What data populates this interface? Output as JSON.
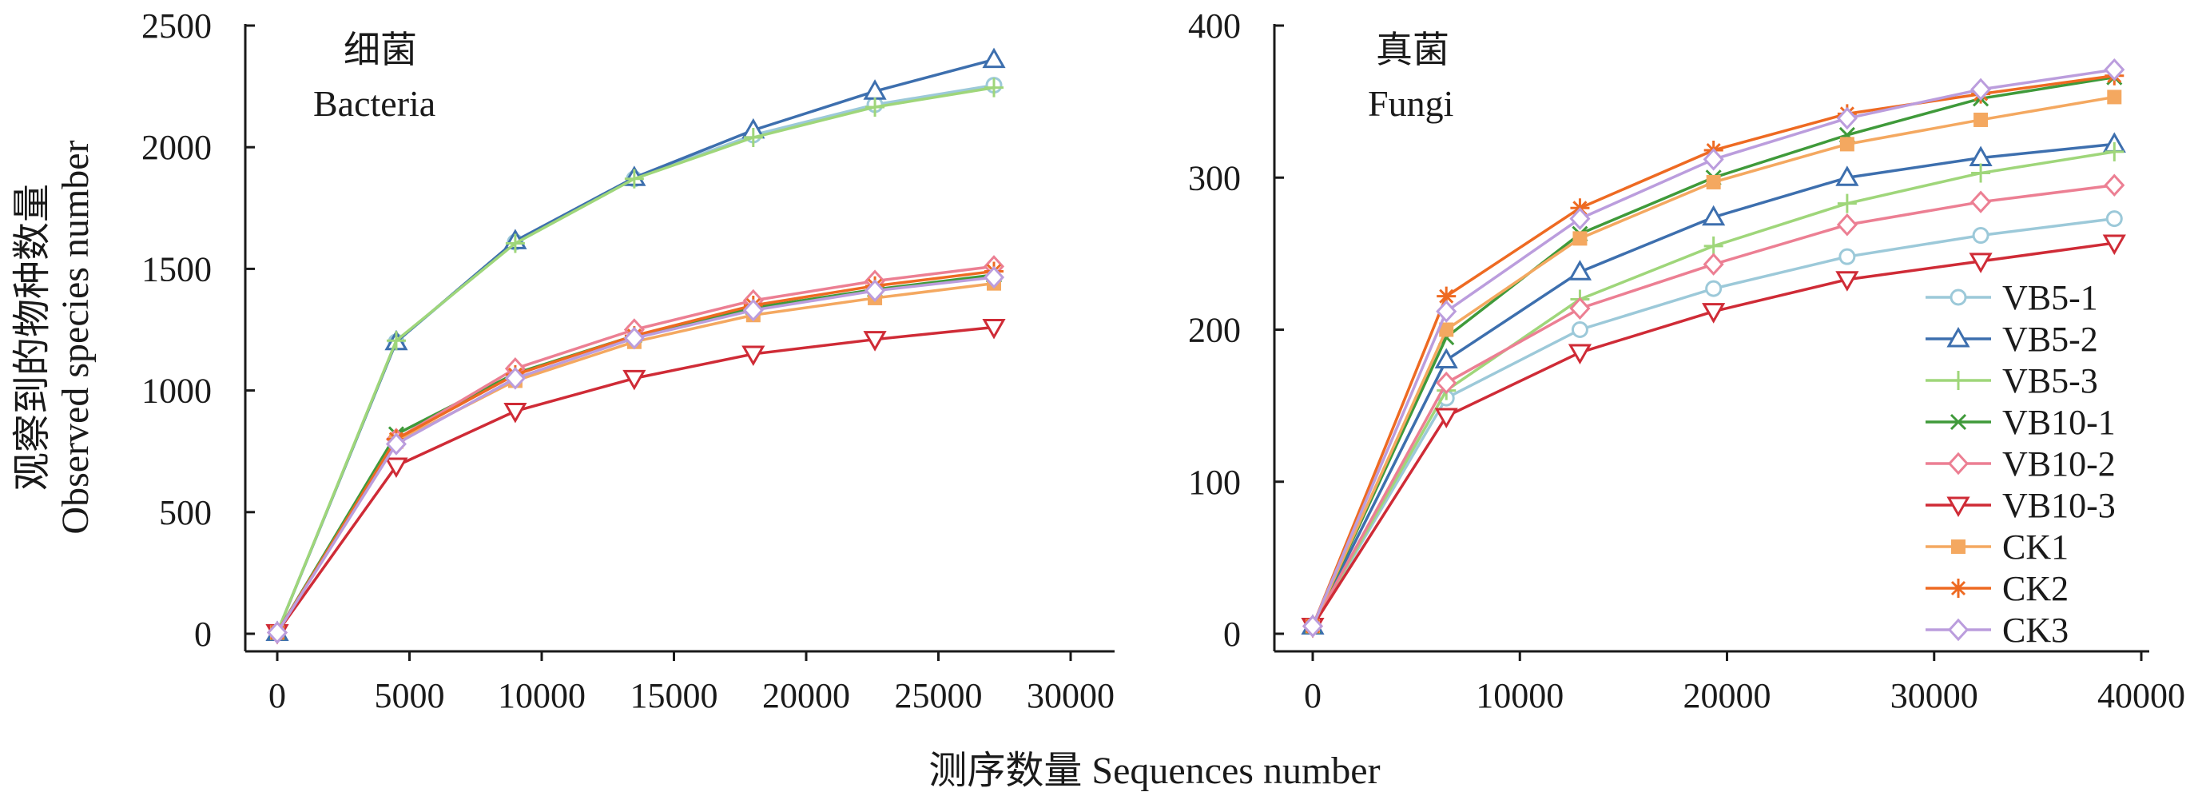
{
  "xlabel": "测序数量 Sequences number",
  "ylabel_cn": "观察到的物种数量",
  "ylabel_en": "Observed species number",
  "series_styles": [
    {
      "name": "VB5-1",
      "color": "#9cc9d9",
      "marker": "circle"
    },
    {
      "name": "VB5-2",
      "color": "#3d6fae",
      "marker": "triangle-up"
    },
    {
      "name": "VB5-3",
      "color": "#9fd67a",
      "marker": "plus"
    },
    {
      "name": "VB10-1",
      "color": "#3f9a3a",
      "marker": "x"
    },
    {
      "name": "VB10-2",
      "color": "#ec7f93",
      "marker": "diamond"
    },
    {
      "name": "VB10-3",
      "color": "#cf2b36",
      "marker": "triangle-down"
    },
    {
      "name": "CK1",
      "color": "#f4a860",
      "marker": "square"
    },
    {
      "name": "CK2",
      "color": "#ee6a22",
      "marker": "asterisk"
    },
    {
      "name": "CK3",
      "color": "#bb9ddd",
      "marker": "diamond"
    }
  ],
  "chart_data": [
    {
      "type": "line",
      "title_cn": "细菌",
      "title_en": "Bacteria",
      "xlim": [
        0,
        30000
      ],
      "ylim": [
        0,
        2500
      ],
      "x_ticks": [
        0,
        5000,
        10000,
        15000,
        20000,
        25000,
        30000
      ],
      "y_ticks": [
        0,
        500,
        1000,
        1500,
        2000,
        2500
      ],
      "x": [
        0,
        4500,
        9000,
        13500,
        18000,
        22600,
        27100
      ],
      "series": [
        {
          "name": "VB5-1",
          "values": [
            5,
            1200,
            1610,
            1870,
            2050,
            2175,
            2255
          ]
        },
        {
          "name": "VB5-2",
          "values": [
            5,
            1200,
            1615,
            1875,
            2070,
            2230,
            2360
          ]
        },
        {
          "name": "VB5-3",
          "values": [
            5,
            1205,
            1605,
            1870,
            2040,
            2165,
            2245
          ]
        },
        {
          "name": "VB10-1",
          "values": [
            5,
            820,
            1070,
            1225,
            1340,
            1415,
            1475
          ]
        },
        {
          "name": "VB10-2",
          "values": [
            5,
            800,
            1090,
            1250,
            1370,
            1450,
            1510
          ]
        },
        {
          "name": "VB10-3",
          "values": [
            5,
            690,
            915,
            1050,
            1150,
            1210,
            1260
          ]
        },
        {
          "name": "CK1",
          "values": [
            5,
            790,
            1040,
            1200,
            1310,
            1380,
            1440
          ]
        },
        {
          "name": "CK2",
          "values": [
            5,
            800,
            1065,
            1225,
            1350,
            1430,
            1490
          ]
        },
        {
          "name": "CK3",
          "values": [
            5,
            780,
            1050,
            1215,
            1330,
            1410,
            1465
          ]
        }
      ]
    },
    {
      "type": "line",
      "title_cn": "真菌",
      "title_en": "Fungi",
      "xlim": [
        0,
        40000
      ],
      "ylim": [
        0,
        400
      ],
      "x_ticks": [
        0,
        10000,
        20000,
        30000,
        40000
      ],
      "y_ticks": [
        0,
        100,
        200,
        300,
        400
      ],
      "x": [
        0,
        6450,
        12900,
        19350,
        25800,
        32250,
        38700
      ],
      "legend": "center-right",
      "series": [
        {
          "name": "VB5-1",
          "values": [
            5,
            155,
            200,
            227,
            248,
            262,
            273
          ]
        },
        {
          "name": "VB5-2",
          "values": [
            5,
            180,
            238,
            274,
            300,
            313,
            322
          ]
        },
        {
          "name": "VB5-3",
          "values": [
            5,
            160,
            220,
            255,
            283,
            303,
            317
          ]
        },
        {
          "name": "VB10-1",
          "values": [
            5,
            195,
            263,
            300,
            328,
            352,
            366
          ]
        },
        {
          "name": "VB10-2",
          "values": [
            5,
            165,
            214,
            243,
            269,
            284,
            295
          ]
        },
        {
          "name": "VB10-3",
          "values": [
            5,
            143,
            185,
            212,
            233,
            245,
            257
          ]
        },
        {
          "name": "CK1",
          "values": [
            5,
            200,
            260,
            297,
            322,
            338,
            353
          ]
        },
        {
          "name": "CK2",
          "values": [
            5,
            222,
            280,
            318,
            342,
            355,
            367
          ]
        },
        {
          "name": "CK3",
          "values": [
            5,
            212,
            273,
            312,
            339,
            358,
            371
          ]
        }
      ]
    }
  ]
}
